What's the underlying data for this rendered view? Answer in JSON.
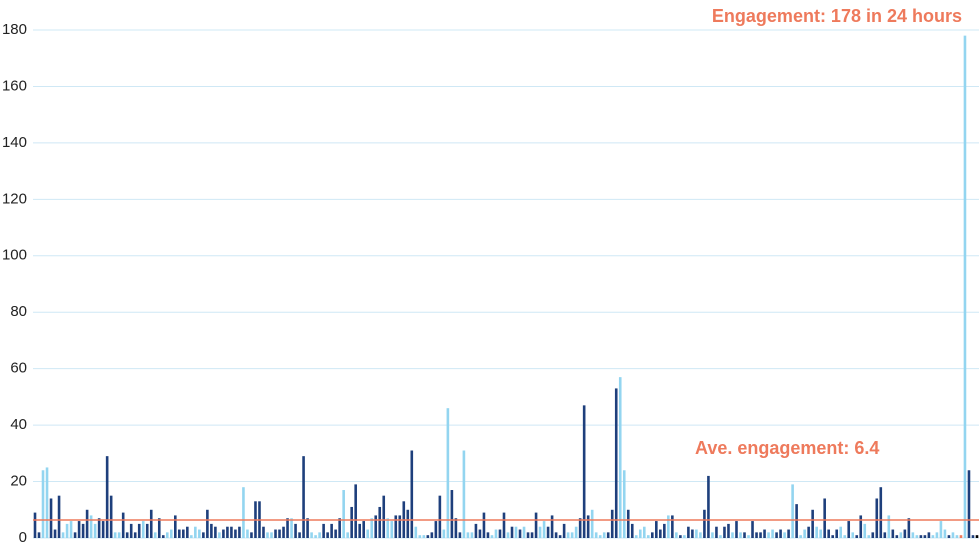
{
  "chart_data": {
    "type": "bar",
    "annotation_top": "Engagement: 178 in 24 hours",
    "annotation_average": "Ave. engagement: 6.4",
    "average": 6.4,
    "average_color": "#ee7a5c",
    "ylim": [
      0,
      180
    ],
    "yticks": [
      0,
      20,
      40,
      60,
      80,
      100,
      120,
      140,
      160,
      180
    ],
    "grid": true,
    "grid_color": "#cfe8f5",
    "values": [
      9,
      2,
      24,
      25,
      14,
      3,
      15,
      2,
      5,
      6,
      2,
      6,
      5,
      10,
      8,
      5,
      7,
      6,
      29,
      15,
      2,
      2,
      9,
      2,
      5,
      2,
      5,
      6,
      5,
      10,
      2,
      7,
      1,
      2,
      3,
      8,
      3,
      3,
      4,
      1,
      4,
      3,
      2,
      10,
      5,
      4,
      2,
      3,
      4,
      4,
      3,
      4,
      18,
      3,
      2,
      13,
      13,
      4,
      2,
      2,
      3,
      3,
      4,
      7,
      7,
      5,
      2,
      29,
      7,
      2,
      1,
      2,
      5,
      2,
      5,
      3,
      7,
      17,
      2,
      11,
      19,
      5,
      6,
      3,
      7,
      8,
      11,
      15,
      7,
      6,
      8,
      8,
      13,
      10,
      31,
      4,
      1,
      1,
      1,
      2,
      6,
      15,
      3,
      46,
      17,
      7,
      2,
      31,
      2,
      2,
      5,
      3,
      9,
      2,
      1,
      3,
      3,
      9,
      2,
      4,
      4,
      3,
      4,
      2,
      2,
      9,
      4,
      6,
      4,
      8,
      2,
      1,
      5,
      2,
      2,
      4,
      7,
      47,
      8,
      10,
      2,
      1,
      2,
      2,
      10,
      53,
      57,
      24,
      10,
      5,
      1,
      3,
      4,
      1,
      2,
      6,
      3,
      5,
      8,
      8,
      2,
      1,
      1,
      4,
      3,
      3,
      2,
      10,
      22,
      2,
      4,
      1,
      4,
      5,
      2,
      6,
      2,
      2,
      1,
      6,
      2,
      2,
      3,
      2,
      3,
      2,
      3,
      2,
      3,
      19,
      12,
      1,
      3,
      4,
      10,
      4,
      3,
      14,
      3,
      1,
      3,
      4,
      1,
      6,
      2,
      1,
      8,
      5,
      1,
      2,
      14,
      18,
      2,
      8,
      3,
      1,
      2,
      3,
      7,
      2,
      1,
      1,
      1,
      2,
      1,
      2,
      6,
      3,
      1,
      2,
      1,
      1,
      178,
      24,
      1,
      1
    ],
    "colors": [
      "#1e3f7c",
      "#1e3f7c",
      "#93d5f0",
      "#93d5f0",
      "#1e3f7c",
      "#1e3f7c",
      "#1e3f7c",
      "#93d5f0",
      "#93d5f0",
      "#93d5f0",
      "#1e3f7c",
      "#1e3f7c",
      "#1e3f7c",
      "#1e3f7c",
      "#93d5f0",
      "#93d5f0",
      "#1e3f7c",
      "#1e3f7c",
      "#1e3f7c",
      "#1e3f7c",
      "#93d5f0",
      "#93d5f0",
      "#1e3f7c",
      "#1e3f7c",
      "#1e3f7c",
      "#1e3f7c",
      "#1e3f7c",
      "#93d5f0",
      "#1e3f7c",
      "#1e3f7c",
      "#93d5f0",
      "#1e3f7c",
      "#1e3f7c",
      "#93d5f0",
      "#93d5f0",
      "#1e3f7c",
      "#1e3f7c",
      "#1e3f7c",
      "#1e3f7c",
      "#93d5f0",
      "#93d5f0",
      "#93d5f0",
      "#1e3f7c",
      "#1e3f7c",
      "#1e3f7c",
      "#1e3f7c",
      "#93d5f0",
      "#1e3f7c",
      "#1e3f7c",
      "#1e3f7c",
      "#1e3f7c",
      "#1e3f7c",
      "#93d5f0",
      "#93d5f0",
      "#1e3f7c",
      "#1e3f7c",
      "#1e3f7c",
      "#1e3f7c",
      "#93d5f0",
      "#93d5f0",
      "#1e3f7c",
      "#1e3f7c",
      "#1e3f7c",
      "#1e3f7c",
      "#93d5f0",
      "#1e3f7c",
      "#1e3f7c",
      "#1e3f7c",
      "#1e3f7c",
      "#93d5f0",
      "#93d5f0",
      "#93d5f0",
      "#1e3f7c",
      "#1e3f7c",
      "#1e3f7c",
      "#1e3f7c",
      "#1e3f7c",
      "#93d5f0",
      "#93d5f0",
      "#1e3f7c",
      "#1e3f7c",
      "#1e3f7c",
      "#1e3f7c",
      "#93d5f0",
      "#93d5f0",
      "#1e3f7c",
      "#1e3f7c",
      "#1e3f7c",
      "#93d5f0",
      "#93d5f0",
      "#1e3f7c",
      "#1e3f7c",
      "#1e3f7c",
      "#1e3f7c",
      "#1e3f7c",
      "#93d5f0",
      "#93d5f0",
      "#93d5f0",
      "#1e3f7c",
      "#1e3f7c",
      "#1e3f7c",
      "#1e3f7c",
      "#93d5f0",
      "#93d5f0",
      "#1e3f7c",
      "#1e3f7c",
      "#1e3f7c",
      "#93d5f0",
      "#93d5f0",
      "#93d5f0",
      "#1e3f7c",
      "#1e3f7c",
      "#1e3f7c",
      "#1e3f7c",
      "#93d5f0",
      "#93d5f0",
      "#1e3f7c",
      "#1e3f7c",
      "#93d5f0",
      "#1e3f7c",
      "#93d5f0",
      "#1e3f7c",
      "#93d5f0",
      "#1e3f7c",
      "#1e3f7c",
      "#1e3f7c",
      "#93d5f0",
      "#93d5f0",
      "#1e3f7c",
      "#1e3f7c",
      "#1e3f7c",
      "#1e3f7c",
      "#1e3f7c",
      "#93d5f0",
      "#93d5f0",
      "#93d5f0",
      "#1e3f7c",
      "#1e3f7c",
      "#1e3f7c",
      "#93d5f0",
      "#93d5f0",
      "#93d5f0",
      "#93d5f0",
      "#1e3f7c",
      "#1e3f7c",
      "#1e3f7c",
      "#93d5f0",
      "#93d5f0",
      "#1e3f7c",
      "#1e3f7c",
      "#93d5f0",
      "#93d5f0",
      "#93d5f0",
      "#93d5f0",
      "#1e3f7c",
      "#1e3f7c",
      "#1e3f7c",
      "#1e3f7c",
      "#93d5f0",
      "#1e3f7c",
      "#93d5f0",
      "#1e3f7c",
      "#93d5f0",
      "#1e3f7c",
      "#1e3f7c",
      "#93d5f0",
      "#93d5f0",
      "#1e3f7c",
      "#1e3f7c",
      "#93d5f0",
      "#1e3f7c",
      "#93d5f0",
      "#1e3f7c",
      "#1e3f7c",
      "#93d5f0",
      "#1e3f7c",
      "#93d5f0",
      "#1e3f7c",
      "#93d5f0",
      "#1e3f7c",
      "#1e3f7c",
      "#1e3f7c",
      "#1e3f7c",
      "#93d5f0",
      "#93d5f0",
      "#1e3f7c",
      "#1e3f7c",
      "#93d5f0",
      "#1e3f7c",
      "#93d5f0",
      "#1e3f7c",
      "#93d5f0",
      "#93d5f0",
      "#1e3f7c",
      "#1e3f7c",
      "#93d5f0",
      "#93d5f0",
      "#1e3f7c",
      "#1e3f7c",
      "#1e3f7c",
      "#1e3f7c",
      "#93d5f0",
      "#93d5f0",
      "#1e3f7c",
      "#93d5f0",
      "#1e3f7c",
      "#1e3f7c",
      "#93d5f0",
      "#93d5f0",
      "#1e3f7c",
      "#1e3f7c",
      "#1e3f7c",
      "#1e3f7c",
      "#93d5f0",
      "#1e3f7c",
      "#1e3f7c",
      "#93d5f0",
      "#1e3f7c",
      "#1e3f7c",
      "#93d5f0",
      "#93d5f0",
      "#1e3f7c",
      "#1e3f7c",
      "#1e3f7c",
      "#93d5f0",
      "#93d5f0",
      "#93d5f0",
      "#93d5f0",
      "#1e3f7c",
      "#93d5f0",
      "#93d5f0",
      "#ee7a5c",
      "#93d5f0",
      "#1e3f7c",
      "#1e3f7c"
    ]
  }
}
